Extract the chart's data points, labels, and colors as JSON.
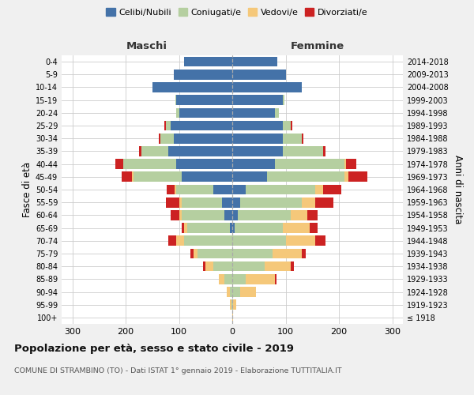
{
  "age_groups": [
    "100+",
    "95-99",
    "90-94",
    "85-89",
    "80-84",
    "75-79",
    "70-74",
    "65-69",
    "60-64",
    "55-59",
    "50-54",
    "45-49",
    "40-44",
    "35-39",
    "30-34",
    "25-29",
    "20-24",
    "15-19",
    "10-14",
    "5-9",
    "0-4"
  ],
  "birth_years": [
    "≤ 1918",
    "1919-1923",
    "1924-1928",
    "1929-1933",
    "1934-1938",
    "1939-1943",
    "1944-1948",
    "1949-1953",
    "1954-1958",
    "1959-1963",
    "1964-1968",
    "1969-1973",
    "1974-1978",
    "1979-1983",
    "1984-1988",
    "1989-1993",
    "1994-1998",
    "1999-2003",
    "2004-2008",
    "2009-2013",
    "2014-2018"
  ],
  "male": {
    "celibi": [
      0,
      0,
      0,
      0,
      0,
      0,
      0,
      5,
      15,
      20,
      35,
      95,
      105,
      120,
      110,
      115,
      100,
      105,
      150,
      110,
      90
    ],
    "coniugati": [
      0,
      2,
      5,
      15,
      35,
      65,
      90,
      80,
      80,
      75,
      70,
      90,
      100,
      50,
      25,
      10,
      5,
      2,
      0,
      0,
      0
    ],
    "vedovi": [
      0,
      2,
      5,
      10,
      15,
      8,
      15,
      5,
      5,
      5,
      3,
      3,
      0,
      0,
      0,
      0,
      0,
      0,
      0,
      0,
      0
    ],
    "divorziati": [
      0,
      0,
      0,
      0,
      5,
      5,
      15,
      5,
      15,
      25,
      15,
      20,
      15,
      5,
      3,
      2,
      0,
      0,
      0,
      0,
      0
    ]
  },
  "female": {
    "nubili": [
      0,
      0,
      0,
      0,
      0,
      0,
      0,
      5,
      10,
      15,
      25,
      65,
      80,
      95,
      95,
      95,
      80,
      95,
      130,
      100,
      85
    ],
    "coniugate": [
      0,
      2,
      15,
      25,
      60,
      75,
      100,
      90,
      100,
      115,
      130,
      145,
      130,
      75,
      35,
      15,
      8,
      3,
      0,
      0,
      0
    ],
    "vedove": [
      2,
      5,
      30,
      55,
      50,
      55,
      55,
      50,
      30,
      25,
      15,
      8,
      3,
      0,
      0,
      0,
      0,
      0,
      0,
      0,
      0
    ],
    "divorziate": [
      0,
      0,
      0,
      3,
      5,
      8,
      20,
      15,
      20,
      35,
      35,
      35,
      20,
      5,
      3,
      2,
      0,
      0,
      0,
      0,
      0
    ]
  },
  "colors": {
    "celibi": "#4472a8",
    "coniugati": "#b5cfa0",
    "vedovi": "#f5c87a",
    "divorziati": "#cc2222"
  },
  "xlim": 320,
  "title": "Popolazione per età, sesso e stato civile - 2019",
  "subtitle": "COMUNE DI STRAMBINO (TO) - Dati ISTAT 1° gennaio 2019 - Elaborazione TUTTITALIA.IT",
  "ylabel": "Fasce di età",
  "right_ylabel": "Anni di nascita",
  "bg_color": "#f0f0f0",
  "plot_bg": "#ffffff",
  "grid_color": "#cccccc"
}
